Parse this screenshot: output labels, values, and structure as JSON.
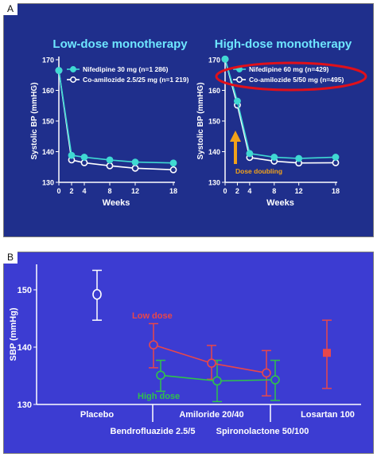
{
  "panel_a_letter": "A",
  "panel_b_letter": "B",
  "colors": {
    "panel_a_bg": "#1f2f8c",
    "panel_b_bg": "#3c3cd2",
    "title": "#6ee6ff",
    "cyan_series": "#3fd9d3",
    "white_series": "#ffffff",
    "highlight_ellipse": "#e0101a",
    "dose_arrow": "#f2a21a",
    "low_dose": "#e8474a",
    "high_dose": "#2fc24a",
    "losartan": "#e8474a"
  },
  "chart_data": [
    {
      "type": "line",
      "title": "Low-dose monotherapy",
      "xlabel": "Weeks",
      "ylabel": "Systolic BP (mmHG)",
      "x": [
        0,
        2,
        4,
        8,
        12,
        18
      ],
      "xticks": [
        "0",
        "2",
        "4",
        "8",
        "12",
        "18"
      ],
      "yticks": [
        "130",
        "140",
        "150",
        "160",
        "170"
      ],
      "xlim": [
        0,
        18
      ],
      "ylim": [
        130,
        170
      ],
      "legend": "top-right",
      "series": [
        {
          "name": "Nifedipine 30 mg (n=1 286)",
          "marker": "filled",
          "values": [
            166.5,
            138.8,
            138.2,
            137.3,
            136.6,
            136.3
          ]
        },
        {
          "name": "Co-amilozide 2.5/25 mg (n=1 219)",
          "marker": "hollow",
          "values": [
            166.5,
            137.3,
            136.4,
            135.4,
            134.6,
            134.1
          ]
        }
      ]
    },
    {
      "type": "line",
      "title": "High-dose monotherapy",
      "xlabel": "Weeks",
      "ylabel": "Systolic BP (mmHG)",
      "x": [
        0,
        2,
        4,
        8,
        12,
        18
      ],
      "xticks": [
        "0",
        "2",
        "4",
        "8",
        "12",
        "18"
      ],
      "yticks": [
        "130",
        "140",
        "150",
        "160",
        "170"
      ],
      "xlim": [
        0,
        18
      ],
      "ylim": [
        130,
        170
      ],
      "legend": "top-right",
      "annotation": "Dose doubling",
      "series": [
        {
          "name": "Nifedipine 60 mg (n=429)",
          "marker": "filled",
          "values": [
            170.2,
            156.5,
            139.4,
            138.2,
            137.8,
            138.2
          ]
        },
        {
          "name": "Co-amilozide 5/50 mg (n=495)",
          "marker": "hollow",
          "values": [
            170.2,
            155.2,
            138.1,
            136.9,
            136.3,
            136.4
          ]
        }
      ]
    },
    {
      "type": "scatter",
      "ylabel": "SBP (mmHg)",
      "yticks": [
        "130",
        "140",
        "150"
      ],
      "ylim": [
        130,
        156
      ],
      "categories_top": [
        "Placebo",
        "Amiloride 20/40",
        "Losartan 100"
      ],
      "categories_bottom": [
        "Bendrofluazide 2.5/5",
        "Spironolactone 50/100"
      ],
      "placebo": {
        "mean": 149.2,
        "low": 144.7,
        "high": 153.4
      },
      "losartan": {
        "mean": 139.0,
        "low": 132.8,
        "high": 144.7
      },
      "series": [
        {
          "name": "Low dose",
          "x": [
            "Bendrofluazide 2.5/5",
            "Amiloride 20/40",
            "Spironolactone 50/100"
          ],
          "mean": [
            140.4,
            137.2,
            135.5
          ],
          "low": [
            136.4,
            134.4,
            131.5
          ],
          "high": [
            144.1,
            140.3,
            139.4
          ]
        },
        {
          "name": "High dose",
          "x": [
            "Bendrofluazide 2.5/5",
            "Amiloride 20/40",
            "Spironolactone 50/100"
          ],
          "mean": [
            135.1,
            134.1,
            134.3
          ],
          "low": [
            132.3,
            130.5,
            130.7
          ],
          "high": [
            137.7,
            137.7,
            137.7
          ]
        }
      ]
    }
  ]
}
